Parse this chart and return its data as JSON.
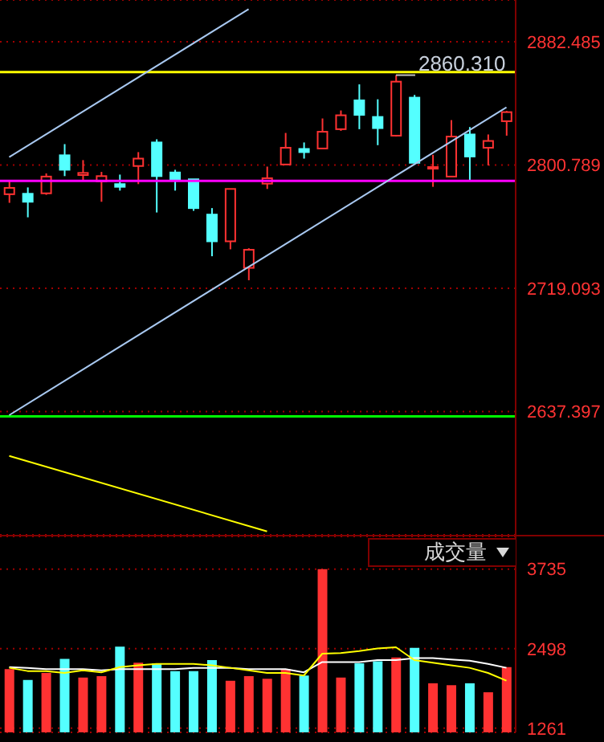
{
  "chart_data": [
    {
      "type": "candlestick",
      "categories": [
        null,
        null,
        null,
        null,
        null,
        null,
        null,
        null,
        null,
        null,
        null,
        null,
        null,
        null,
        null,
        null,
        null,
        null,
        null,
        null,
        null,
        null,
        null,
        null,
        null,
        null,
        null,
        null
      ],
      "ohlc": [
        [
          2781.4,
          2790.9,
          2775.7,
          2785.6
        ],
        [
          2781.7,
          2785.9,
          2766.1,
          2776.4
        ],
        [
          2782.0,
          2795.2,
          2781.0,
          2793.1
        ],
        [
          2807.2,
          2814.6,
          2793.4,
          2797.6
        ],
        [
          2794.1,
          2804.0,
          2789.9,
          2795.5
        ],
        [
          2789.9,
          2796.2,
          2776.4,
          2793.4
        ],
        [
          2788.1,
          2794.4,
          2783.8,
          2786.3
        ],
        [
          2800.1,
          2809.3,
          2788.1,
          2805.0
        ],
        [
          2815.7,
          2817.8,
          2769.3,
          2793.4
        ],
        [
          2795.8,
          2797.6,
          2783.8,
          2791.3
        ],
        [
          2791.3,
          2791.3,
          2770.4,
          2772.2
        ],
        [
          2767.9,
          2772.2,
          2740.3,
          2750.2
        ],
        [
          2750.2,
          2784.9,
          2744.9,
          2784.9
        ],
        [
          2732.6,
          2745.6,
          2724.4,
          2744.6
        ],
        [
          2788.4,
          2799.7,
          2784.9,
          2792.0
        ],
        [
          2801.1,
          2822.0,
          2801.1,
          2812.2
        ],
        [
          2811.4,
          2815.7,
          2805.0,
          2809.3
        ],
        [
          2811.7,
          2831.6,
          2811.7,
          2822.8
        ],
        [
          2824.5,
          2836.9,
          2823.4,
          2833.7
        ],
        [
          2843.6,
          2854.2,
          2824.5,
          2834.0
        ],
        [
          2832.6,
          2844.3,
          2813.9,
          2825.2
        ],
        [
          2820.2,
          2860.31,
          2819.6,
          2856.0
        ],
        [
          2845.4,
          2847.2,
          2802.2,
          2802.2
        ],
        [
          2798.4,
          2807.5,
          2786.3,
          2799.4
        ],
        [
          2793.1,
          2830.5,
          2793.1,
          2819.6
        ],
        [
          2821.0,
          2825.9,
          2789.9,
          2806.4
        ],
        [
          2812.2,
          2821.0,
          2800.5,
          2816.7
        ],
        [
          2829.8,
          2836.6,
          2820.2,
          2835.8
        ]
      ],
      "colors": [
        "#ff3232",
        "#54ffff",
        "#ff3232",
        "#54ffff",
        "#ff3232",
        "#ff3232",
        "#54ffff",
        "#ff3232",
        "#54ffff",
        "#54ffff",
        "#54ffff",
        "#54ffff",
        "#ff3232",
        "#ff3232",
        "#ff3232",
        "#ff3232",
        "#54ffff",
        "#ff3232",
        "#ff3232",
        "#54ffff",
        "#54ffff",
        "#ff3232",
        "#54ffff",
        "#ff3232",
        "#ff3232",
        "#54ffff",
        "#ff3232",
        "#ff3232"
      ],
      "series": [
        {
          "type": "line",
          "color": "#a8c8f0",
          "values": [
            2806,
            null,
            null,
            null,
            null,
            null,
            null,
            null,
            null,
            null,
            null,
            null,
            null,
            2904,
            null,
            null,
            null,
            null,
            null,
            null,
            null,
            null,
            null,
            null,
            null,
            null,
            null,
            null
          ]
        },
        {
          "type": "line",
          "color": "#a8c8f0",
          "values": [
            2635,
            null,
            null,
            null,
            null,
            null,
            null,
            null,
            null,
            null,
            null,
            null,
            null,
            null,
            null,
            null,
            null,
            null,
            null,
            null,
            null,
            null,
            null,
            null,
            null,
            null,
            null,
            2839
          ]
        },
        {
          "type": "line",
          "color": "#ffff00",
          "values": [
            2608,
            null,
            null,
            null,
            null,
            null,
            null,
            null,
            null,
            null,
            null,
            null,
            null,
            null,
            2558,
            null,
            null,
            null,
            null,
            null,
            null,
            null,
            null,
            null,
            null,
            null,
            null,
            null
          ]
        }
      ],
      "ylim": [
        2555.7,
        2910.1
      ],
      "yticks": [
        2637.397,
        2719.093,
        2800.789,
        2882.485
      ],
      "grid": "y",
      "tick_labels": "y",
      "ref_lines": [
        {
          "axis": "y",
          "value": 2862.3,
          "color": "#ffff00"
        },
        {
          "axis": "y",
          "value": 2790.2,
          "color": "#ff00ff"
        },
        {
          "axis": "y",
          "value": 2634.2,
          "color": "#00ff00"
        }
      ],
      "annotations": [
        {
          "text": "2860.310",
          "y": 2860.31
        }
      ]
    },
    {
      "type": "bar",
      "categories": [
        null,
        null,
        null,
        null,
        null,
        null,
        null,
        null,
        null,
        null,
        null,
        null,
        null,
        null,
        null,
        null,
        null,
        null,
        null,
        null,
        null,
        null,
        null,
        null,
        null,
        null,
        null,
        null
      ],
      "series": [
        {
          "type": "bar",
          "values": [
            2180,
            2010,
            2120,
            2340,
            2050,
            2070,
            2530,
            2280,
            2270,
            2150,
            2150,
            2320,
            2000,
            2070,
            2030,
            2180,
            2080,
            3735,
            2050,
            2270,
            2300,
            2360,
            2510,
            1960,
            1930,
            1960,
            1820,
            2210
          ],
          "colors": [
            "#ff3232",
            "#54ffff",
            "#ff3232",
            "#54ffff",
            "#ff3232",
            "#ff3232",
            "#54ffff",
            "#ff3232",
            "#54ffff",
            "#54ffff",
            "#54ffff",
            "#54ffff",
            "#ff3232",
            "#ff3232",
            "#ff3232",
            "#ff3232",
            "#54ffff",
            "#ff3232",
            "#ff3232",
            "#54ffff",
            "#54ffff",
            "#ff3232",
            "#54ffff",
            "#ff3232",
            "#ff3232",
            "#54ffff",
            "#ff3232",
            "#ff3232"
          ]
        },
        {
          "type": "line",
          "color": "#ffffff",
          "values": [
            2210,
            2200,
            2180,
            2180,
            2180,
            2160,
            2180,
            2180,
            2180,
            2180,
            2200,
            2200,
            2200,
            2180,
            2180,
            2180,
            2130,
            2290,
            2290,
            2290,
            2320,
            2320,
            2350,
            2350,
            2330,
            2310,
            2260,
            2200
          ]
        },
        {
          "type": "line",
          "color": "#ffff00",
          "values": [
            2200,
            2150,
            2150,
            2120,
            2160,
            2130,
            2210,
            2240,
            2260,
            2260,
            2260,
            2240,
            2200,
            2160,
            2120,
            2120,
            2080,
            2420,
            2430,
            2460,
            2500,
            2520,
            2320,
            2280,
            2240,
            2200,
            2120,
            2000
          ]
        }
      ],
      "ylim": [
        1197,
        4242
      ],
      "yticks": [
        1261,
        2498,
        3735
      ],
      "grid": "y",
      "tick_labels": "y",
      "annotations": [
        "成交量"
      ]
    }
  ]
}
